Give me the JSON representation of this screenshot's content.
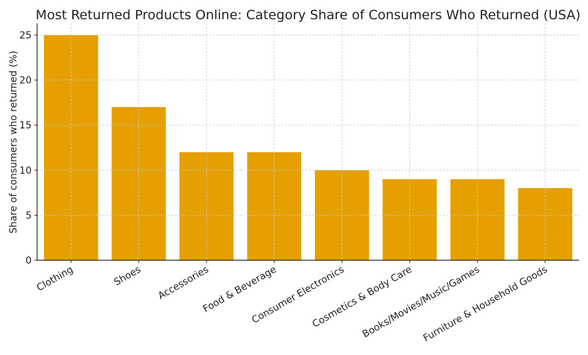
{
  "chart_data": {
    "type": "bar",
    "title": "Most Returned Products Online: Category Share of Consumers Who Returned (USA)",
    "xlabel": "",
    "ylabel": "Share of consumers who returned (%)",
    "categories": [
      "Clothing",
      "Shoes",
      "Accessories",
      "Food & Beverage",
      "Consumer Electronics",
      "Cosmetics & Body Care",
      "Books/Movies/Music/Games",
      "Furniture & Household Goods"
    ],
    "values": [
      25,
      17,
      12,
      12,
      10,
      9,
      9,
      8
    ],
    "ylim": [
      0,
      26.3
    ],
    "yticks": [
      0,
      5,
      10,
      15,
      20,
      25
    ],
    "grid": true,
    "bar_color": "#E5A000"
  }
}
